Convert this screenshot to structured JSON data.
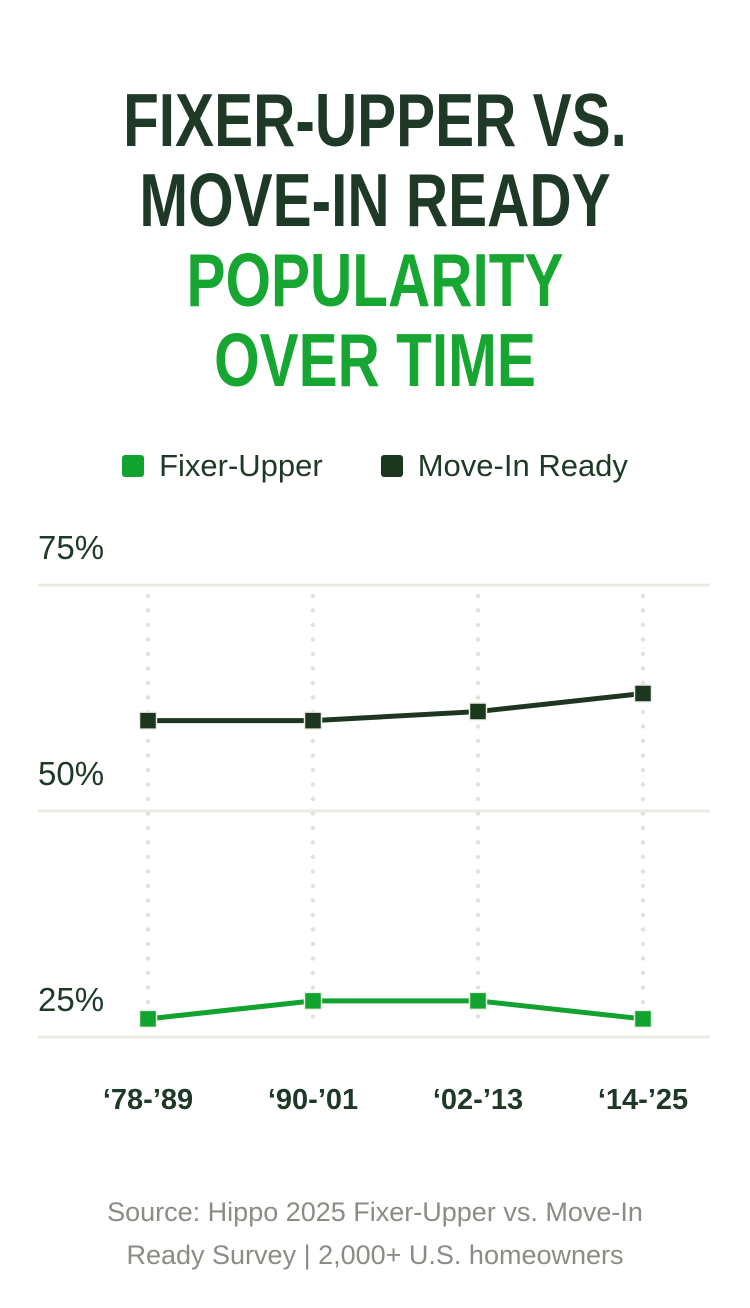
{
  "page": {
    "background": "#FFFFFF"
  },
  "title": {
    "line1": "FIXER-UPPER VS.",
    "line2": "MOVE-IN READY",
    "line3": "POPULARITY",
    "line4": "OVER TIME",
    "dark_color": "#1E3A26",
    "green_color": "#17A631"
  },
  "legend": {
    "items": [
      {
        "label": "Fixer-Upper",
        "color": "#12A230"
      },
      {
        "label": "Move-In Ready",
        "color": "#1C3620"
      }
    ]
  },
  "source": {
    "line1": "Source: Hippo 2025 Fixer-Upper vs. Move-In",
    "line2": "Ready Survey | 2,000+ U.S. homeowners"
  },
  "chart_data": {
    "type": "line",
    "title": "Fixer-Upper vs. Move-In Ready Popularity Over Time",
    "categories": [
      "‘78-’89",
      "‘90-’01",
      "‘02-’13",
      "‘14-’25"
    ],
    "series": [
      {
        "name": "Fixer-Upper",
        "color": "#12A230",
        "values": [
          27,
          29,
          29,
          27
        ]
      },
      {
        "name": "Move-In Ready",
        "color": "#1C3620",
        "values": [
          60,
          60,
          61,
          63
        ]
      }
    ],
    "values_unit": "%",
    "y_ticks": [
      {
        "value": 75,
        "label": "75%"
      },
      {
        "value": 50,
        "label": "50%"
      },
      {
        "value": 25,
        "label": "25%"
      }
    ],
    "ylim": [
      25,
      75
    ],
    "grid": {
      "horizontal": "solid",
      "vertical": "dotted"
    },
    "legend_position": "top",
    "colors": {
      "gridline": "#ECEBE2",
      "dots": "#E3E1D8",
      "axis_text": "#1E3A26"
    }
  }
}
